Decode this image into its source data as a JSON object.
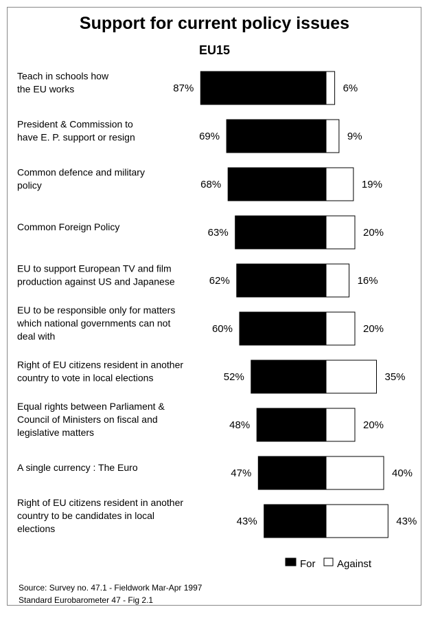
{
  "chart_data": {
    "type": "bar",
    "orientation": "horizontal-diverging",
    "title": "Support for current policy issues",
    "subtitle": "EU15",
    "categories": [
      [
        "Teach in schools how",
        "the EU works"
      ],
      [
        "President & Commission to",
        "have E. P. support or resign"
      ],
      [
        "Common defence and military",
        "policy"
      ],
      [
        "Common Foreign Policy"
      ],
      [
        "EU to support European TV  and film",
        "production against US and Japanese"
      ],
      [
        "EU to be responsible only for matters",
        "which national governments can not",
        "deal with"
      ],
      [
        "Right of EU citizens resident in another",
        "country to vote in local elections"
      ],
      [
        "Equal rights between Parliament &",
        "Council of Ministers on fiscal and",
        "legislative matters"
      ],
      [
        "A single currency : The Euro"
      ],
      [
        "Right of EU citizens resident in another",
        "country to be candidates in local",
        "elections"
      ]
    ],
    "series": [
      {
        "name": "For",
        "color": "#000000",
        "values": [
          87,
          69,
          68,
          63,
          62,
          60,
          52,
          48,
          47,
          43
        ]
      },
      {
        "name": "Against",
        "color": "#ffffff",
        "values": [
          6,
          9,
          19,
          20,
          16,
          20,
          35,
          20,
          40,
          43
        ]
      }
    ],
    "value_suffix": "%",
    "legend": "bottom-right",
    "grid": false
  },
  "source": {
    "line1": "Source:  Survey no. 47.1 - Fieldwork Mar-Apr 1997",
    "line2": "Standard Eurobarometer 47 - Fig 2.1"
  }
}
